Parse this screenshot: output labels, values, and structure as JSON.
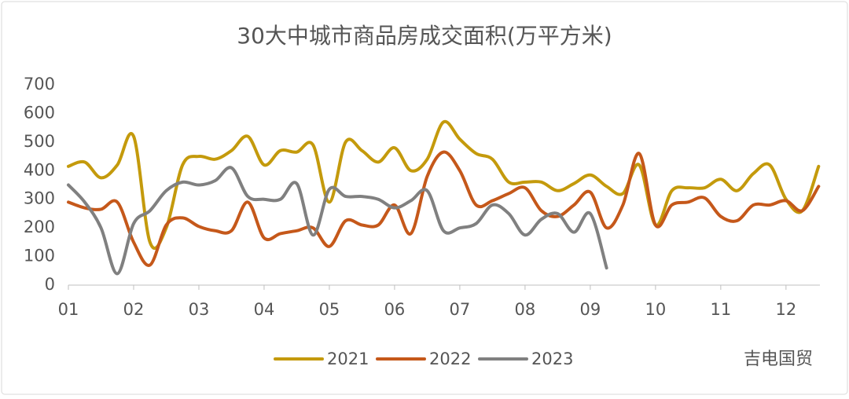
{
  "chart_data": {
    "type": "line",
    "title": "30大中城市商品房成交面积(万平方米)",
    "x": [
      1,
      1.25,
      1.5,
      1.75,
      2,
      2.25,
      2.5,
      2.75,
      3,
      3.25,
      3.5,
      3.75,
      4,
      4.25,
      4.5,
      4.75,
      5,
      5.25,
      5.5,
      5.75,
      6,
      6.25,
      6.5,
      6.75,
      7,
      7.25,
      7.5,
      7.75,
      8,
      8.25,
      8.5,
      8.75,
      9,
      9.25,
      9.5,
      9.75,
      10,
      10.25,
      10.5,
      10.75,
      11,
      11.25,
      11.5,
      11.75,
      12,
      12.25,
      12.5
    ],
    "series": [
      {
        "name": "2021",
        "color": "#c49a0c",
        "values": [
          415,
          430,
          375,
          420,
          520,
          150,
          200,
          420,
          450,
          440,
          470,
          520,
          420,
          470,
          465,
          490,
          290,
          500,
          470,
          430,
          480,
          400,
          440,
          570,
          510,
          460,
          440,
          360,
          360,
          360,
          330,
          355,
          385,
          345,
          320,
          420,
          210,
          330,
          340,
          340,
          370,
          330,
          390,
          420,
          300,
          260,
          415
        ]
      },
      {
        "name": "2022",
        "color": "#c5581a",
        "values": [
          290,
          270,
          265,
          290,
          150,
          70,
          210,
          235,
          205,
          190,
          190,
          290,
          165,
          180,
          190,
          200,
          135,
          225,
          210,
          210,
          280,
          180,
          380,
          465,
          400,
          280,
          295,
          320,
          340,
          260,
          240,
          280,
          325,
          200,
          280,
          460,
          210,
          280,
          290,
          305,
          240,
          225,
          280,
          280,
          295,
          260,
          345
        ]
      },
      {
        "name": "2023",
        "color": "#808080",
        "values": [
          350,
          290,
          200,
          40,
          215,
          260,
          330,
          360,
          350,
          365,
          410,
          310,
          300,
          300,
          355,
          175,
          335,
          310,
          310,
          300,
          270,
          295,
          330,
          190,
          200,
          215,
          280,
          250,
          175,
          230,
          250,
          185,
          250,
          60,
          null,
          null,
          null,
          null,
          null,
          null,
          null,
          null,
          null,
          null,
          null,
          null,
          null
        ]
      }
    ],
    "xlim": [
      1,
      12.52
    ],
    "xticks": [
      {
        "value": 1,
        "label": "01"
      },
      {
        "value": 2,
        "label": "02"
      },
      {
        "value": 3,
        "label": "03"
      },
      {
        "value": 4,
        "label": "04"
      },
      {
        "value": 5,
        "label": "05"
      },
      {
        "value": 6,
        "label": "06"
      },
      {
        "value": 7,
        "label": "07"
      },
      {
        "value": 8,
        "label": "08"
      },
      {
        "value": 9,
        "label": "09"
      },
      {
        "value": 10,
        "label": "10"
      },
      {
        "value": 11,
        "label": "11"
      },
      {
        "value": 12,
        "label": "12"
      }
    ],
    "ylim": [
      0,
      700
    ],
    "yticks": [
      0,
      100,
      200,
      300,
      400,
      500,
      600,
      700
    ],
    "legend": "bottom",
    "watermark": "吉电国贸"
  }
}
